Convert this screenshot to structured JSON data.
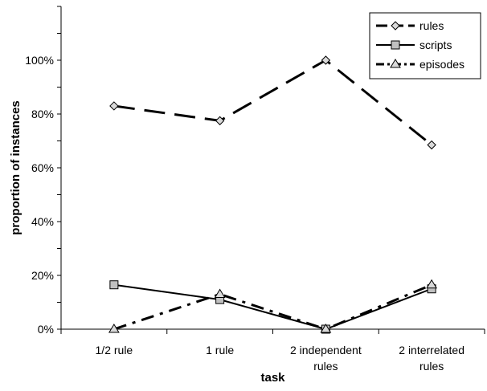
{
  "chart_data": {
    "type": "line",
    "xlabel": "task",
    "ylabel": "proportion of instances",
    "categories": [
      [
        "1/2 rule"
      ],
      [
        "1 rule"
      ],
      [
        "2 independent",
        "rules"
      ],
      [
        "2 interrelated",
        "rules"
      ]
    ],
    "ylim": [
      0,
      1.2
    ],
    "yticks": [
      0,
      0.2,
      0.4,
      0.6,
      0.8,
      1.0
    ],
    "ytick_labels": [
      "0%",
      "20%",
      "40%",
      "60%",
      "80%",
      "100%"
    ],
    "grid": false,
    "legend_position": "top-right",
    "series": [
      {
        "name": "rules",
        "values": [
          0.83,
          0.775,
          1.0,
          0.685
        ],
        "marker": "diamond",
        "dash": "long-dash",
        "color": "#000000",
        "marker_fill": "#d9d9d9"
      },
      {
        "name": "scripts",
        "values": [
          0.165,
          0.11,
          0.0,
          0.15
        ],
        "marker": "square",
        "dash": "solid",
        "color": "#000000",
        "marker_fill": "#c0c0c0"
      },
      {
        "name": "episodes",
        "values": [
          0.0,
          0.13,
          0.0,
          0.165
        ],
        "marker": "triangle",
        "dash": "dash-dot",
        "color": "#000000",
        "marker_fill": "#d9d9d9"
      }
    ]
  }
}
